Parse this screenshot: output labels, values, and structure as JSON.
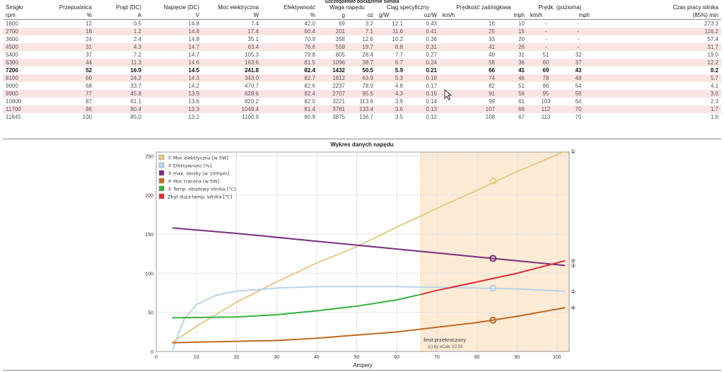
{
  "table": {
    "title": "Szczegółowe obciążenie silnika",
    "head1": [
      "Śmigło",
      "Przepustnica",
      "Prąd (DC)",
      "Napięcie (DC)",
      "Moc elektryczna",
      "Efektywność",
      "Waga napędu",
      "Ciąg specyficzny",
      "Prędkość zaśmigłowa",
      "Prędk. (pozioma)",
      "Czas pracy silnika"
    ],
    "head2": [
      "rpm",
      "%",
      "A",
      "V",
      "W",
      "%",
      "g",
      "oz",
      "g/W",
      "oz/W",
      "km/h",
      "mph",
      "km/h",
      "mph",
      "(85%) min"
    ],
    "rows": [
      [
        "1800",
        "12",
        "0.5",
        "14.8",
        "7.4",
        "42.0",
        "69",
        "3.2",
        "12.1",
        "0.43",
        "16",
        "10",
        "-",
        "-",
        "273.3"
      ],
      [
        "2700",
        "18",
        "1.2",
        "14.8",
        "17.4",
        "60.4",
        "201",
        "7.1",
        "11.6",
        "0.41",
        "25",
        "15",
        "-",
        "-",
        "116.2"
      ],
      [
        "3600",
        "24",
        "2.4",
        "14.8",
        "35.1",
        "70.9",
        "358",
        "12.6",
        "10.2",
        "0.36",
        "33",
        "20",
        "-",
        "-",
        "57.4"
      ],
      [
        "4500",
        "31",
        "4.3",
        "14.7",
        "63.4",
        "76.6",
        "559",
        "19.7",
        "8.8",
        "0.31",
        "41",
        "26",
        "-",
        "-",
        "31.7"
      ],
      [
        "5400",
        "37",
        "7.2",
        "14.7",
        "105.3",
        "79.8",
        "805",
        "28.4",
        "7.7",
        "0.27",
        "49",
        "31",
        "51",
        "32",
        "19.0"
      ],
      [
        "6300",
        "44",
        "11.3",
        "14.6",
        "163.6",
        "81.5",
        "1096",
        "38.7",
        "6.7",
        "0.24",
        "58",
        "36",
        "60",
        "37",
        "12.2"
      ],
      [
        "7200",
        "52",
        "16.9",
        "14.5",
        "241.8",
        "82.4",
        "1432",
        "50.5",
        "5.9",
        "0.21",
        "66",
        "41",
        "69",
        "43",
        "8.2"
      ],
      [
        "8100",
        "60",
        "24.2",
        "14.3",
        "343.0",
        "82.7",
        "1812",
        "63.9",
        "5.3",
        "0.19",
        "74",
        "46",
        "78",
        "48",
        "5.7"
      ],
      [
        "9000",
        "68",
        "33.7",
        "14.2",
        "470.7",
        "82.6",
        "2237",
        "78.9",
        "4.8",
        "0.17",
        "82",
        "51",
        "86",
        "54",
        "4.1"
      ],
      [
        "9900",
        "77",
        "45.8",
        "13.9",
        "628.6",
        "82.4",
        "2707",
        "95.5",
        "4.3",
        "0.15",
        "91",
        "56",
        "95",
        "59",
        "3.0"
      ],
      [
        "10800",
        "87",
        "61.1",
        "13.6",
        "820.2",
        "82.0",
        "3221",
        "113.6",
        "3.9",
        "0.14",
        "99",
        "61",
        "103",
        "64",
        "2.3"
      ],
      [
        "11700",
        "96",
        "80.4",
        "13.3",
        "1049.4",
        "81.4",
        "3781",
        "133.4",
        "3.6",
        "0.13",
        "107",
        "66",
        "112",
        "70",
        "1.7"
      ],
      [
        "11845",
        "100",
        "85.0",
        "13.2",
        "1100.9",
        "80.9",
        "3875",
        "136.7",
        "3.5",
        "0.12",
        "108",
        "67",
        "113",
        "70",
        "1.6"
      ]
    ],
    "bold_row_index": 6
  },
  "chart_data": {
    "type": "line",
    "title": "Wykres danych napędu",
    "xlabel": "Ampery",
    "ylabel": "",
    "xlim": [
      0,
      103
    ],
    "ylim": [
      0,
      255
    ],
    "x_ticks": [
      0,
      10,
      20,
      30,
      40,
      50,
      60,
      70,
      80,
      90,
      100
    ],
    "y_ticks": [
      0,
      50,
      100,
      150,
      200,
      250
    ],
    "grid": true,
    "limit_region": {
      "x_from": 66,
      "x_to": 103,
      "label": "limit przekroczony",
      "color": "#fdebd5"
    },
    "credit": "(c) by eCalc  V2.05",
    "series": [
      {
        "name": "Moc elektryczna [w 5W]",
        "marker": "①",
        "color": "#e8c98a",
        "x": [
          4,
          10,
          20,
          30,
          40,
          50,
          60,
          70,
          80,
          90,
          102
        ],
        "values": [
          12,
          32,
          63,
          89,
          113,
          134,
          159,
          183,
          206,
          230,
          256
        ],
        "point": [
          84,
          218
        ]
      },
      {
        "name": "Efektywność [%]",
        "marker": "②",
        "color": "#b9d3ea",
        "x": [
          4,
          5,
          7,
          10,
          15,
          20,
          30,
          40,
          50,
          60,
          70,
          80,
          90,
          102
        ],
        "values": [
          0,
          15,
          42,
          60,
          72,
          77,
          81,
          83,
          83,
          83,
          82,
          81,
          80,
          77
        ],
        "point": [
          84,
          81
        ]
      },
      {
        "name": "max. obroty [w 100rpm]",
        "marker": "③",
        "color": "#7a2e7e",
        "x": [
          4,
          20,
          40,
          60,
          80,
          102
        ],
        "values": [
          158,
          151,
          141,
          131,
          121,
          110
        ],
        "point": [
          84,
          119
        ]
      },
      {
        "name": "Moc tracona [w 5W]",
        "marker": "④",
        "color": "#c06a22",
        "x": [
          4,
          10,
          20,
          30,
          40,
          50,
          60,
          70,
          80,
          90,
          102
        ],
        "values": [
          11,
          12,
          13,
          14,
          17,
          21,
          25,
          31,
          37,
          45,
          56
        ],
        "point": [
          84,
          40
        ]
      },
      {
        "name": "Temp. obudowy silnika [°C]",
        "marker": "⑤",
        "color": "#38b13e",
        "x": [
          4,
          20,
          30,
          40,
          50,
          60,
          66
        ],
        "values": [
          43,
          44,
          47,
          52,
          58,
          66,
          73
        ]
      },
      {
        "name": "Zbyt duża temp. silnika [°C]",
        "marker": "",
        "color": "#d8303a",
        "x": [
          66,
          70,
          80,
          90,
          102
        ],
        "values": [
          73,
          78,
          89,
          100,
          116
        ]
      }
    ],
    "end_markers": [
      {
        "label": "①",
        "y": 256
      },
      {
        "label": "⑤",
        "y": 116
      },
      {
        "label": "③",
        "y": 110
      },
      {
        "label": "②",
        "y": 77
      },
      {
        "label": "④",
        "y": 56
      }
    ]
  }
}
